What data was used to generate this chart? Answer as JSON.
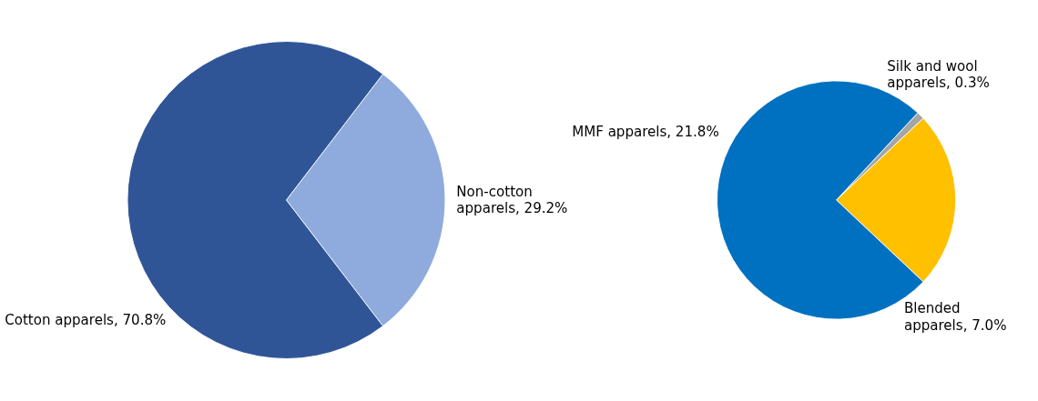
{
  "chart_data": [
    {
      "type": "pie",
      "categories": [
        "Non-cotton apparels",
        "Cotton apparels"
      ],
      "values": [
        29.2,
        70.8
      ],
      "colors": [
        "#8faadc",
        "#2f5597"
      ],
      "value_labels": [
        "29.2%",
        "70.8%"
      ],
      "legend": false
    },
    {
      "type": "pie",
      "categories": [
        "Silk and wool apparels",
        "Blended apparels",
        "MMF apparels"
      ],
      "values": [
        0.3,
        7.0,
        21.8
      ],
      "colors": [
        "#a5a5a5",
        "#ffc000",
        "#0070c0"
      ],
      "value_labels": [
        "0.3%",
        "7.0%",
        "21.8%"
      ],
      "legend": false
    }
  ]
}
